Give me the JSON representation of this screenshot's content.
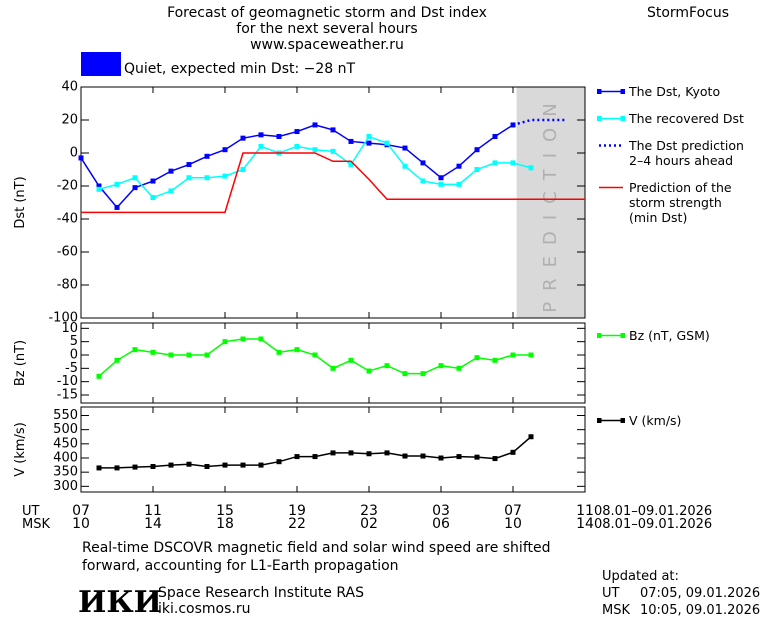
{
  "header": {
    "title": [
      "Forecast of geomagnetic storm and Dst index",
      "for the next several hours",
      "www.spaceweather.ru"
    ],
    "brand": "StormFocus",
    "status": "Quiet, expected min Dst: −28 nT",
    "status_color": "#0000ff"
  },
  "time_axis": {
    "xlim": [
      7,
      35
    ],
    "ut_label": "UT",
    "msk_label": "MSK",
    "ut_ticks": [
      {
        "value": 7,
        "label": "07"
      },
      {
        "value": 11,
        "label": "11"
      },
      {
        "value": 15,
        "label": "15"
      },
      {
        "value": 19,
        "label": "19"
      },
      {
        "value": 23,
        "label": "23"
      },
      {
        "value": 27,
        "label": "03"
      },
      {
        "value": 31,
        "label": "07"
      },
      {
        "value": 35,
        "label": "11"
      }
    ],
    "msk_ticks": [
      {
        "value": 7,
        "label": "10"
      },
      {
        "value": 11,
        "label": "14"
      },
      {
        "value": 15,
        "label": "18"
      },
      {
        "value": 19,
        "label": "22"
      },
      {
        "value": 23,
        "label": "02"
      },
      {
        "value": 27,
        "label": "06"
      },
      {
        "value": 31,
        "label": "10"
      },
      {
        "value": 35,
        "label": "14"
      }
    ],
    "ut_range": "08.01–09.01.2026",
    "msk_range": "08.01–09.01.2026"
  },
  "chart_data": [
    {
      "type": "line",
      "y_label": "Dst (nT)",
      "ylim": [
        -100,
        40
      ],
      "yticks": [
        40,
        20,
        0,
        -20,
        -40,
        -60,
        -80,
        -100
      ],
      "prediction_region": {
        "label": "PREDICTION",
        "xlim": [
          31.2,
          35
        ],
        "color": "#d9d9d9"
      },
      "series": [
        {
          "name": "The Dst, Kyoto",
          "color": "#0000ff",
          "marker": "square",
          "line_style": "solid",
          "x": [
            7,
            8,
            9,
            10,
            11,
            12,
            13,
            14,
            15,
            16,
            17,
            18,
            19,
            20,
            21,
            22,
            23,
            24,
            25,
            26,
            27,
            28,
            29,
            30,
            31
          ],
          "values": [
            -3,
            -20,
            -33,
            -21,
            -17,
            -11,
            -7,
            -2,
            2,
            9,
            11,
            10,
            13,
            17,
            14,
            7,
            6,
            5,
            3,
            -6,
            -15,
            -8,
            2,
            10,
            17
          ]
        },
        {
          "name": "The recovered Dst",
          "color": "#00ffff",
          "marker": "square",
          "line_style": "solid",
          "x": [
            8,
            9,
            10,
            11,
            12,
            13,
            14,
            15,
            16,
            17,
            18,
            19,
            20,
            21,
            22,
            23,
            24,
            25,
            26,
            27,
            28,
            29,
            30,
            31,
            32
          ],
          "values": [
            -22,
            -19,
            -15,
            -27,
            -23,
            -15,
            -15,
            -14,
            -10,
            4,
            0,
            4,
            2,
            1,
            -7,
            10,
            6,
            -8,
            -17,
            -19,
            -19,
            -10,
            -6,
            -6,
            -9
          ]
        },
        {
          "name": "The Dst prediction\n2–4 hours ahead",
          "color": "#0000ff",
          "marker": "none",
          "line_style": "dotted",
          "x": [
            31,
            32,
            33,
            34
          ],
          "values": [
            17,
            20,
            20,
            20
          ]
        },
        {
          "name": "Prediction of the\nstorm strength\n(min Dst)",
          "color": "#ff0000",
          "marker": "none",
          "line_style": "solid",
          "x": [
            7,
            15,
            16,
            20,
            21,
            22,
            23,
            24,
            35
          ],
          "values": [
            -36,
            -36,
            0,
            0,
            -5,
            -5,
            -16,
            -28,
            -28
          ]
        }
      ]
    },
    {
      "type": "line",
      "y_label": "Bz (nT)",
      "ylim": [
        -18,
        12
      ],
      "yticks": [
        10,
        5,
        0,
        -5,
        -10,
        -15
      ],
      "series": [
        {
          "name": "Bz (nT, GSM)",
          "color": "#00ff00",
          "marker": "square",
          "line_style": "solid",
          "x": [
            8,
            9,
            10,
            11,
            12,
            13,
            14,
            15,
            16,
            17,
            18,
            19,
            20,
            21,
            22,
            23,
            24,
            25,
            26,
            27,
            28,
            29,
            30,
            31,
            32
          ],
          "values": [
            -8,
            -2,
            2,
            1,
            0,
            0,
            0,
            5,
            6,
            6,
            1,
            2,
            0,
            -5,
            -2,
            -6,
            -4,
            -7,
            -7,
            -4,
            -5,
            -1,
            -2,
            0,
            0
          ]
        }
      ]
    },
    {
      "type": "line",
      "y_label": "V (km/s)",
      "ylim": [
        280,
        580
      ],
      "yticks": [
        550,
        500,
        450,
        400,
        350,
        300
      ],
      "series": [
        {
          "name": "V (km/s)",
          "color": "#000000",
          "marker": "square",
          "line_style": "solid",
          "x": [
            8,
            9,
            10,
            11,
            12,
            13,
            14,
            15,
            16,
            17,
            18,
            19,
            20,
            21,
            22,
            23,
            24,
            25,
            26,
            27,
            28,
            29,
            30,
            31,
            32
          ],
          "values": [
            365,
            365,
            368,
            370,
            375,
            378,
            370,
            375,
            375,
            375,
            387,
            405,
            405,
            418,
            418,
            415,
            418,
            407,
            407,
            400,
            405,
            403,
            398,
            420,
            475
          ]
        }
      ]
    }
  ],
  "footer": {
    "note": "Real-time DSCOVR magnetic field and solar wind speed are shifted\nforward, accounting for L1-Earth propagation",
    "logo": "ИКИ",
    "institute": "Space Research Institute RAS",
    "site": "iki.cosmos.ru",
    "updated": "Updated at:",
    "ut_label": "UT",
    "ut_time": "07:05, 09.01.2026",
    "msk_label": "MSK",
    "msk_time": "10:05, 09.01.2026"
  }
}
